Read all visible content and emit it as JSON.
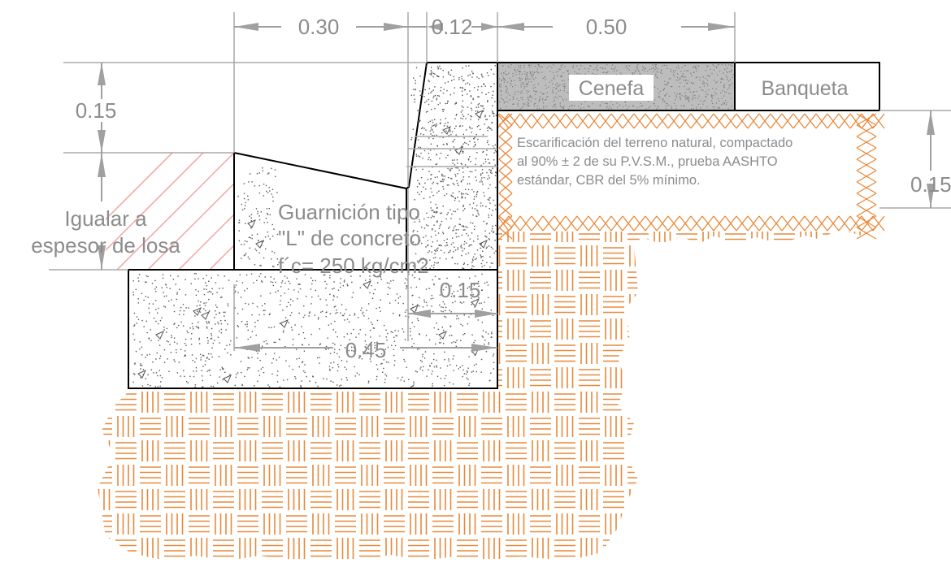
{
  "dimensions": {
    "d_030": "0.30",
    "d_012": "0.12",
    "d_050": "0.50",
    "d_015_left": "0.15",
    "d_015_right": "0.15",
    "d_015_inner": "0.15",
    "d_045": "0.45"
  },
  "labels": {
    "cenefa": "Cenefa",
    "banqueta": "Banqueta",
    "igualar_line1": "Igualar a",
    "igualar_line2": "espesor de losa",
    "guarnicion_line1": "Guarnición tipo",
    "guarnicion_line2": "\"L\" de concreto",
    "guarnicion_line3": "f´c= 250 kg/cm2",
    "escarificacion_line1": "Escarificación del terreno natural, compactado",
    "escarificacion_line2": "al 90% ± 2 de su P.V.S.M., prueba AASHTO",
    "escarificacion_line3": "estándar, CBR del 5% mínimo."
  },
  "colors": {
    "soil_hatch": "#e8893a",
    "slab_hatch": "#f2a3a3",
    "outline": "#000000",
    "dimension": "#a0a0a0",
    "text": "#8c8c8c",
    "cenefa_fill": "#bdbdbd"
  }
}
